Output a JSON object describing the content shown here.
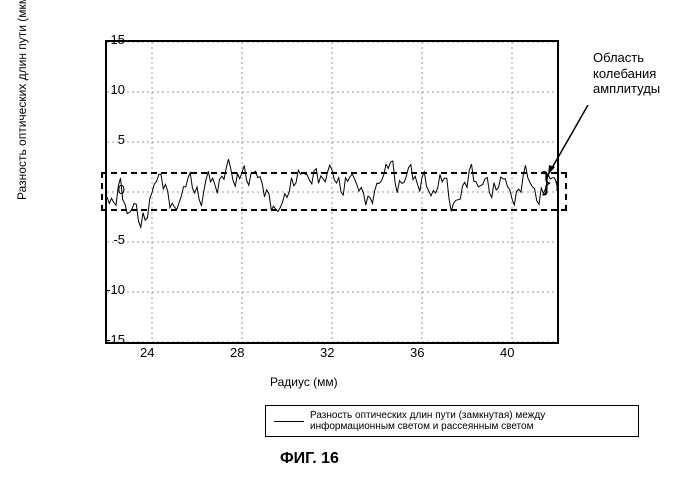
{
  "chart": {
    "type": "line",
    "y_axis_label": "Разность оптических длин пути (мкм)",
    "x_axis_label": "Радиус (мм)",
    "ylim": [
      -15,
      15
    ],
    "xlim": [
      22,
      42
    ],
    "yticks": [
      -15,
      -10,
      -5,
      0,
      5,
      10,
      15
    ],
    "xticks": [
      24,
      28,
      32,
      36,
      40
    ],
    "grid_color": "#999999",
    "border_color": "#000000",
    "line_color": "#000000",
    "background": "#ffffff",
    "annotation": {
      "text_line1": "Область",
      "text_line2": "колебания",
      "text_line3": "амплитуды"
    },
    "highlight_band": {
      "y_min": -1.5,
      "y_max": 2
    },
    "legend": {
      "text": "Разность оптических длин пути (замкнутая) между информационным светом и рассеянным светом"
    },
    "figure_label": "ФИГ. 16",
    "series": {
      "x": [
        22,
        22.3,
        22.6,
        22.9,
        23.2,
        23.5,
        23.8,
        24.1,
        24.4,
        24.7,
        25,
        25.3,
        25.6,
        25.9,
        26.2,
        26.5,
        26.8,
        27.1,
        27.4,
        27.7,
        28,
        28.3,
        28.6,
        28.9,
        29.2,
        29.5,
        29.8,
        30.1,
        30.4,
        30.7,
        31,
        31.3,
        31.6,
        31.9,
        32.2,
        32.5,
        32.8,
        33.1,
        33.4,
        33.7,
        34,
        34.3,
        34.6,
        34.9,
        35.2,
        35.5,
        35.8,
        36.1,
        36.4,
        36.7,
        37,
        37.3,
        37.6,
        37.9,
        38.2,
        38.5,
        38.8,
        39.1,
        39.4,
        39.7,
        40,
        40.3,
        40.6,
        40.9,
        41.2,
        41.5,
        41.8,
        42
      ],
      "y": [
        -0.5,
        -1.5,
        0.8,
        -2.5,
        -1,
        -3,
        -2,
        1,
        1.5,
        -0.5,
        -2,
        -0.5,
        1.8,
        0.5,
        -1,
        2,
        0.2,
        1,
        3,
        0.8,
        2.5,
        1.2,
        2.2,
        0.5,
        -0.8,
        -2.2,
        -1,
        0.5,
        1.5,
        2.2,
        1,
        1.8,
        0.8,
        2.5,
        1.2,
        0.3,
        2,
        0.8,
        -0.5,
        -1.2,
        0.5,
        1.8,
        3.5,
        0.5,
        1.2,
        2.5,
        0.2,
        1.5,
        -0.5,
        0.8,
        2,
        -1.5,
        -0.8,
        0.5,
        2.2,
        0.2,
        1.5,
        0,
        1,
        1.5,
        -1,
        -0.3,
        2.2,
        0.5,
        -0.8,
        1,
        1.8,
        0.5
      ]
    }
  }
}
